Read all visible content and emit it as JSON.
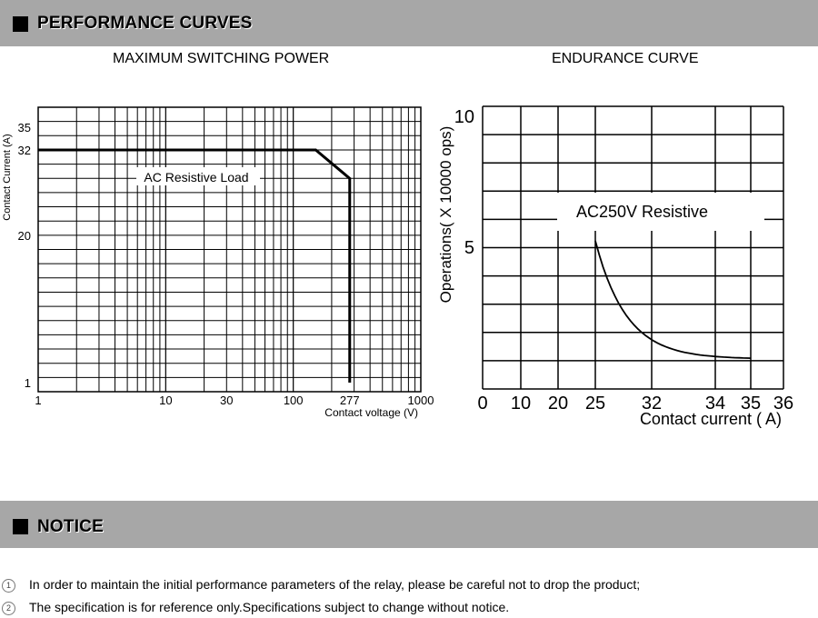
{
  "header": {
    "title": "PERFORMANCE CURVES"
  },
  "notice_header": {
    "title": "NOTICE"
  },
  "notices": [
    {
      "num": "1",
      "text": "In order to maintain the initial performance parameters of the relay, please be careful not to drop the product;"
    },
    {
      "num": "2",
      "text": "The specification is for reference only.Specifications subject to change without notice."
    }
  ],
  "chart_data": [
    {
      "type": "line",
      "title": "MAXIMUM SWITCHING POWER",
      "xlabel": "Contact voltage (V)",
      "ylabel": "Contact Current (A)",
      "x_scale": "log",
      "xlim": [
        1,
        1000
      ],
      "ylim": [
        1,
        35
      ],
      "x_ticks": [
        "1",
        "10",
        "30",
        "100",
        "277",
        "1000"
      ],
      "y_ticks": [
        "1",
        "20",
        "32",
        "35"
      ],
      "series": [
        {
          "name": "AC Resistive Load",
          "x": [
            1,
            150,
            277,
            277
          ],
          "y": [
            32,
            32,
            28,
            1
          ]
        }
      ],
      "grid": true
    },
    {
      "type": "line",
      "title": "ENDURANCE CURVE",
      "xlabel": "Contact current ( A)",
      "ylabel": "Operations( X 10000 ops)",
      "x_ticks": [
        "0",
        "10",
        "20",
        "25",
        "32",
        "34",
        "35",
        "36"
      ],
      "y_ticks": [
        "10",
        "5"
      ],
      "ylim": [
        0,
        10
      ],
      "series": [
        {
          "name": "AC250V Resistive",
          "x": [
            "25",
            "27",
            "29",
            "32",
            "34",
            "35"
          ],
          "y": [
            5.2,
            3.7,
            2.7,
            2.1,
            1.5,
            1.3
          ]
        }
      ],
      "grid": true
    }
  ]
}
